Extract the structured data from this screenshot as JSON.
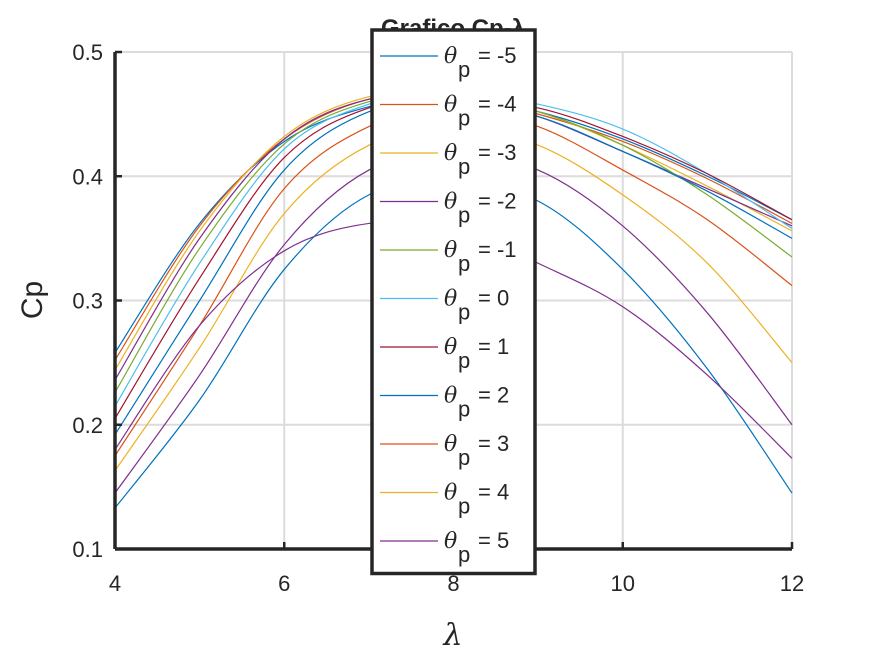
{
  "chart_data": {
    "type": "line",
    "title": "Grafico Cp-λ",
    "xlabel": "λ",
    "ylabel": "Cp",
    "xlim": [
      4,
      12
    ],
    "ylim": [
      0.1,
      0.5
    ],
    "x_ticks": [
      "4",
      "6",
      "8",
      "10",
      "12"
    ],
    "y_ticks": [
      "0.1",
      "0.2",
      "0.3",
      "0.4",
      "0.5"
    ],
    "grid": true,
    "legend_position": "top-center",
    "legend_prefix": "θ",
    "legend_subscript": "p",
    "series": [
      {
        "name": "= -5",
        "color": "#0072BD",
        "x": [
          4,
          5,
          6,
          7,
          8,
          9,
          10,
          11,
          12
        ],
        "values": [
          0.258,
          0.362,
          0.428,
          0.456,
          0.465,
          0.452,
          0.43,
          0.4,
          0.365
        ]
      },
      {
        "name": "= -4",
        "color": "#D95319",
        "x": [
          4,
          5,
          6,
          7,
          8,
          9,
          10,
          11,
          12
        ],
        "values": [
          0.252,
          0.36,
          0.43,
          0.462,
          0.466,
          0.45,
          0.428,
          0.398,
          0.362
        ]
      },
      {
        "name": "= -3",
        "color": "#EDB120",
        "x": [
          4,
          5,
          6,
          7,
          8,
          9,
          10,
          11,
          12
        ],
        "values": [
          0.244,
          0.356,
          0.432,
          0.464,
          0.467,
          0.452,
          0.425,
          0.392,
          0.356
        ]
      },
      {
        "name": "= -2",
        "color": "#7E2F8E",
        "x": [
          4,
          5,
          6,
          7,
          8,
          9,
          10,
          11,
          12
        ],
        "values": [
          0.236,
          0.35,
          0.43,
          0.462,
          0.464,
          0.448,
          0.42,
          0.39,
          0.36
        ]
      },
      {
        "name": "= -1",
        "color": "#77AC30",
        "x": [
          4,
          5,
          6,
          7,
          8,
          9,
          10,
          11,
          12
        ],
        "values": [
          0.226,
          0.342,
          0.426,
          0.46,
          0.466,
          0.452,
          0.425,
          0.385,
          0.335
        ]
      },
      {
        "name": "= 0",
        "color": "#4DBEEE",
        "x": [
          4,
          5,
          6,
          7,
          8,
          9,
          10,
          11,
          12
        ],
        "values": [
          0.215,
          0.33,
          0.422,
          0.458,
          0.468,
          0.458,
          0.438,
          0.402,
          0.358
        ]
      },
      {
        "name": "= 1",
        "color": "#A2142F",
        "x": [
          4,
          5,
          6,
          7,
          8,
          9,
          10,
          11,
          12
        ],
        "values": [
          0.205,
          0.318,
          0.415,
          0.455,
          0.462,
          0.455,
          0.432,
          0.402,
          0.365
        ]
      },
      {
        "name": "= 2",
        "color": "#0072BD",
        "x": [
          4,
          5,
          6,
          7,
          8,
          9,
          10,
          11,
          12
        ],
        "values": [
          0.192,
          0.3,
          0.405,
          0.452,
          0.46,
          0.448,
          0.42,
          0.388,
          0.35
        ]
      },
      {
        "name": "= 3",
        "color": "#D95319",
        "x": [
          4,
          5,
          6,
          7,
          8,
          9,
          10,
          11,
          12
        ],
        "values": [
          0.175,
          0.28,
          0.39,
          0.44,
          0.455,
          0.44,
          0.405,
          0.365,
          0.312
        ]
      },
      {
        "name": "= 4",
        "color": "#EDB120",
        "x": [
          4,
          5,
          6,
          7,
          8,
          9,
          10,
          11,
          12
        ],
        "values": [
          0.163,
          0.262,
          0.37,
          0.425,
          0.44,
          0.425,
          0.385,
          0.33,
          0.25
        ]
      },
      {
        "name": "= 5",
        "color": "#7E2F8E",
        "x": [
          4,
          5,
          6,
          7,
          8,
          9,
          10,
          11,
          12
        ],
        "values": [
          0.145,
          0.24,
          0.345,
          0.405,
          0.418,
          0.405,
          0.36,
          0.29,
          0.2
        ]
      },
      {
        "name": "",
        "color": "#0072BD",
        "x": [
          4,
          5,
          6,
          7,
          8,
          9,
          10,
          11,
          12
        ],
        "values": [
          0.133,
          0.22,
          0.325,
          0.385,
          0.395,
          0.38,
          0.325,
          0.245,
          0.145
        ]
      },
      {
        "name": "",
        "color": "#7E2F8E",
        "x": [
          4,
          5,
          6,
          7,
          8,
          9,
          10,
          11,
          12
        ],
        "values": [
          0.18,
          0.28,
          0.34,
          0.362,
          0.36,
          0.33,
          0.295,
          0.24,
          0.173
        ]
      }
    ]
  }
}
